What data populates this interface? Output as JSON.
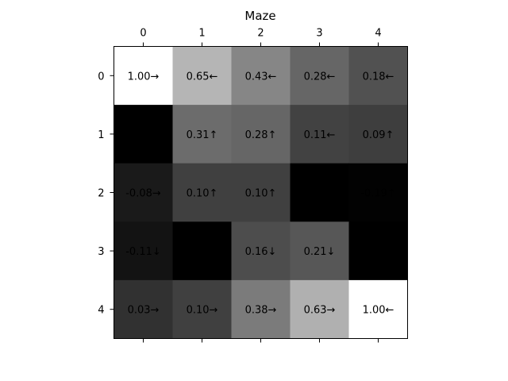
{
  "chart_data": {
    "type": "heatmap",
    "title": "Maze",
    "x_ticks": [
      "0",
      "1",
      "2",
      "3",
      "4"
    ],
    "y_ticks": [
      "0",
      "1",
      "2",
      "3",
      "4"
    ],
    "x_axis_position": "top",
    "colormap": "gray",
    "value_range": [
      -0.2,
      1.0
    ],
    "wall_color": "#000000",
    "cells": [
      [
        {
          "value": 1.0,
          "label": "1.00→",
          "wall": false
        },
        {
          "value": 0.65,
          "label": "0.65←",
          "wall": false
        },
        {
          "value": 0.43,
          "label": "0.43←",
          "wall": false
        },
        {
          "value": 0.28,
          "label": "0.28←",
          "wall": false
        },
        {
          "value": 0.18,
          "label": "0.18←",
          "wall": false
        }
      ],
      [
        {
          "value": null,
          "label": "",
          "wall": true
        },
        {
          "value": 0.31,
          "label": "0.31↑",
          "wall": false
        },
        {
          "value": 0.28,
          "label": "0.28↑",
          "wall": false
        },
        {
          "value": 0.11,
          "label": "0.11←",
          "wall": false
        },
        {
          "value": 0.09,
          "label": "0.09↑",
          "wall": false
        }
      ],
      [
        {
          "value": -0.08,
          "label": "-0.08→",
          "wall": false
        },
        {
          "value": 0.1,
          "label": "0.10↑",
          "wall": false
        },
        {
          "value": 0.1,
          "label": "0.10↑",
          "wall": false
        },
        {
          "value": null,
          "label": "",
          "wall": true
        },
        {
          "value": -0.19,
          "label": "-0.19↑",
          "wall": false
        }
      ],
      [
        {
          "value": -0.11,
          "label": "-0.11↓",
          "wall": false
        },
        {
          "value": null,
          "label": "",
          "wall": true
        },
        {
          "value": 0.16,
          "label": "0.16↓",
          "wall": false
        },
        {
          "value": 0.21,
          "label": "0.21↓",
          "wall": false
        },
        {
          "value": null,
          "label": "",
          "wall": true
        }
      ],
      [
        {
          "value": 0.03,
          "label": "0.03→",
          "wall": false
        },
        {
          "value": 0.1,
          "label": "0.10→",
          "wall": false
        },
        {
          "value": 0.38,
          "label": "0.38→",
          "wall": false
        },
        {
          "value": 0.63,
          "label": "0.63→",
          "wall": false
        },
        {
          "value": 1.0,
          "label": "1.00←",
          "wall": false
        }
      ]
    ]
  }
}
